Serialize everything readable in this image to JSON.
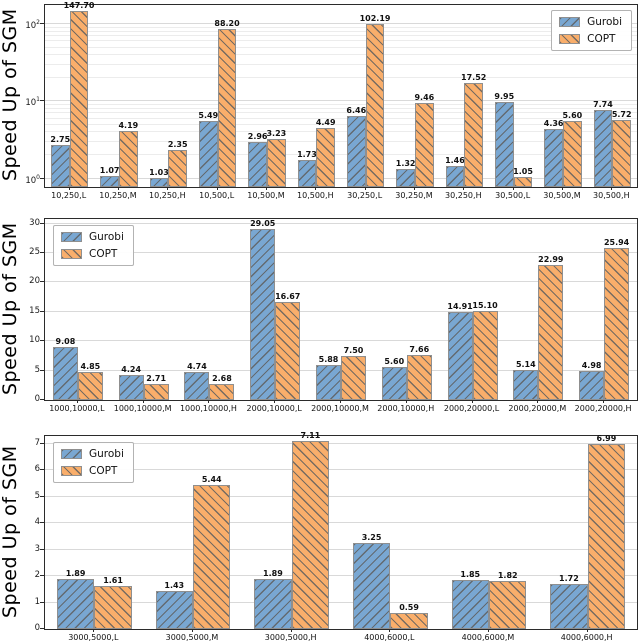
{
  "figure": {
    "ylabel": "Speed Up of SGM"
  },
  "legend": {
    "items": [
      {
        "label": "Gurobi",
        "color": "#79a7d2",
        "hatch": "/"
      },
      {
        "label": "COPT",
        "color": "#f9ae6b",
        "hatch": "\\"
      }
    ]
  },
  "colors": {
    "gurobi": "#79a7d2",
    "copt": "#f9ae6b",
    "hatch": "#5f5f5f",
    "bar_edge": "#8f8f8f",
    "grid_major": "#d9d9d9",
    "grid_minor": "#ececec",
    "spine": "#2b2b2b"
  },
  "chart_data": [
    {
      "type": "bar",
      "title": "",
      "xlabel": "",
      "ylabel": "Speed Up of SGM",
      "yscale": "log",
      "ylim_exp": [
        -0.11,
        2.25
      ],
      "yticks": [
        "10^0",
        "10^1",
        "10^2"
      ],
      "grid": true,
      "legend_position": "top-right",
      "categories": [
        "10,250,L",
        "10,250,M",
        "10,250,H",
        "10,500,L",
        "10,500,M",
        "10,500,H",
        "30,250,L",
        "30,250,M",
        "30,250,H",
        "30,500,L",
        "30,500,M",
        "30,500,H"
      ],
      "series": [
        {
          "name": "Gurobi",
          "values": [
            2.75,
            1.07,
            1.03,
            5.49,
            2.96,
            1.73,
            6.46,
            1.32,
            1.46,
            9.95,
            4.36,
            7.74
          ]
        },
        {
          "name": "COPT",
          "values": [
            147.7,
            4.19,
            2.35,
            88.2,
            3.23,
            4.49,
            102.19,
            9.46,
            17.52,
            1.05,
            5.6,
            5.72
          ]
        }
      ]
    },
    {
      "type": "bar",
      "title": "",
      "xlabel": "",
      "ylabel": "Speed Up of SGM",
      "yscale": "linear",
      "ylim": [
        0,
        30.8
      ],
      "yticks": [
        0,
        5,
        10,
        15,
        20,
        25,
        30
      ],
      "grid": true,
      "legend_position": "top-left",
      "categories": [
        "1000,10000,L",
        "1000,10000,M",
        "1000,10000,H",
        "2000,10000,L",
        "2000,10000,M",
        "2000,10000,H",
        "2000,20000,L",
        "2000,20000,M",
        "2000,20000,H"
      ],
      "series": [
        {
          "name": "Gurobi",
          "values": [
            9.08,
            4.24,
            4.74,
            29.05,
            5.88,
            5.6,
            14.91,
            5.14,
            4.98
          ]
        },
        {
          "name": "COPT",
          "values": [
            4.85,
            2.71,
            2.68,
            16.67,
            7.5,
            7.66,
            15.1,
            22.99,
            25.94
          ]
        }
      ]
    },
    {
      "type": "bar",
      "title": "",
      "xlabel": "",
      "ylabel": "Speed Up of SGM",
      "yscale": "linear",
      "ylim": [
        0,
        7.3
      ],
      "yticks": [
        0,
        1,
        2,
        3,
        4,
        5,
        6,
        7
      ],
      "grid": true,
      "legend_position": "top-left",
      "categories": [
        "3000,5000,L",
        "3000,5000,M",
        "3000,5000,H",
        "4000,6000,L",
        "4000,6000,M",
        "4000,6000,H"
      ],
      "series": [
        {
          "name": "Gurobi",
          "values": [
            1.89,
            1.43,
            1.89,
            3.25,
            1.85,
            1.72
          ]
        },
        {
          "name": "COPT",
          "values": [
            1.61,
            5.44,
            7.11,
            0.59,
            1.82,
            6.99
          ]
        }
      ]
    }
  ]
}
